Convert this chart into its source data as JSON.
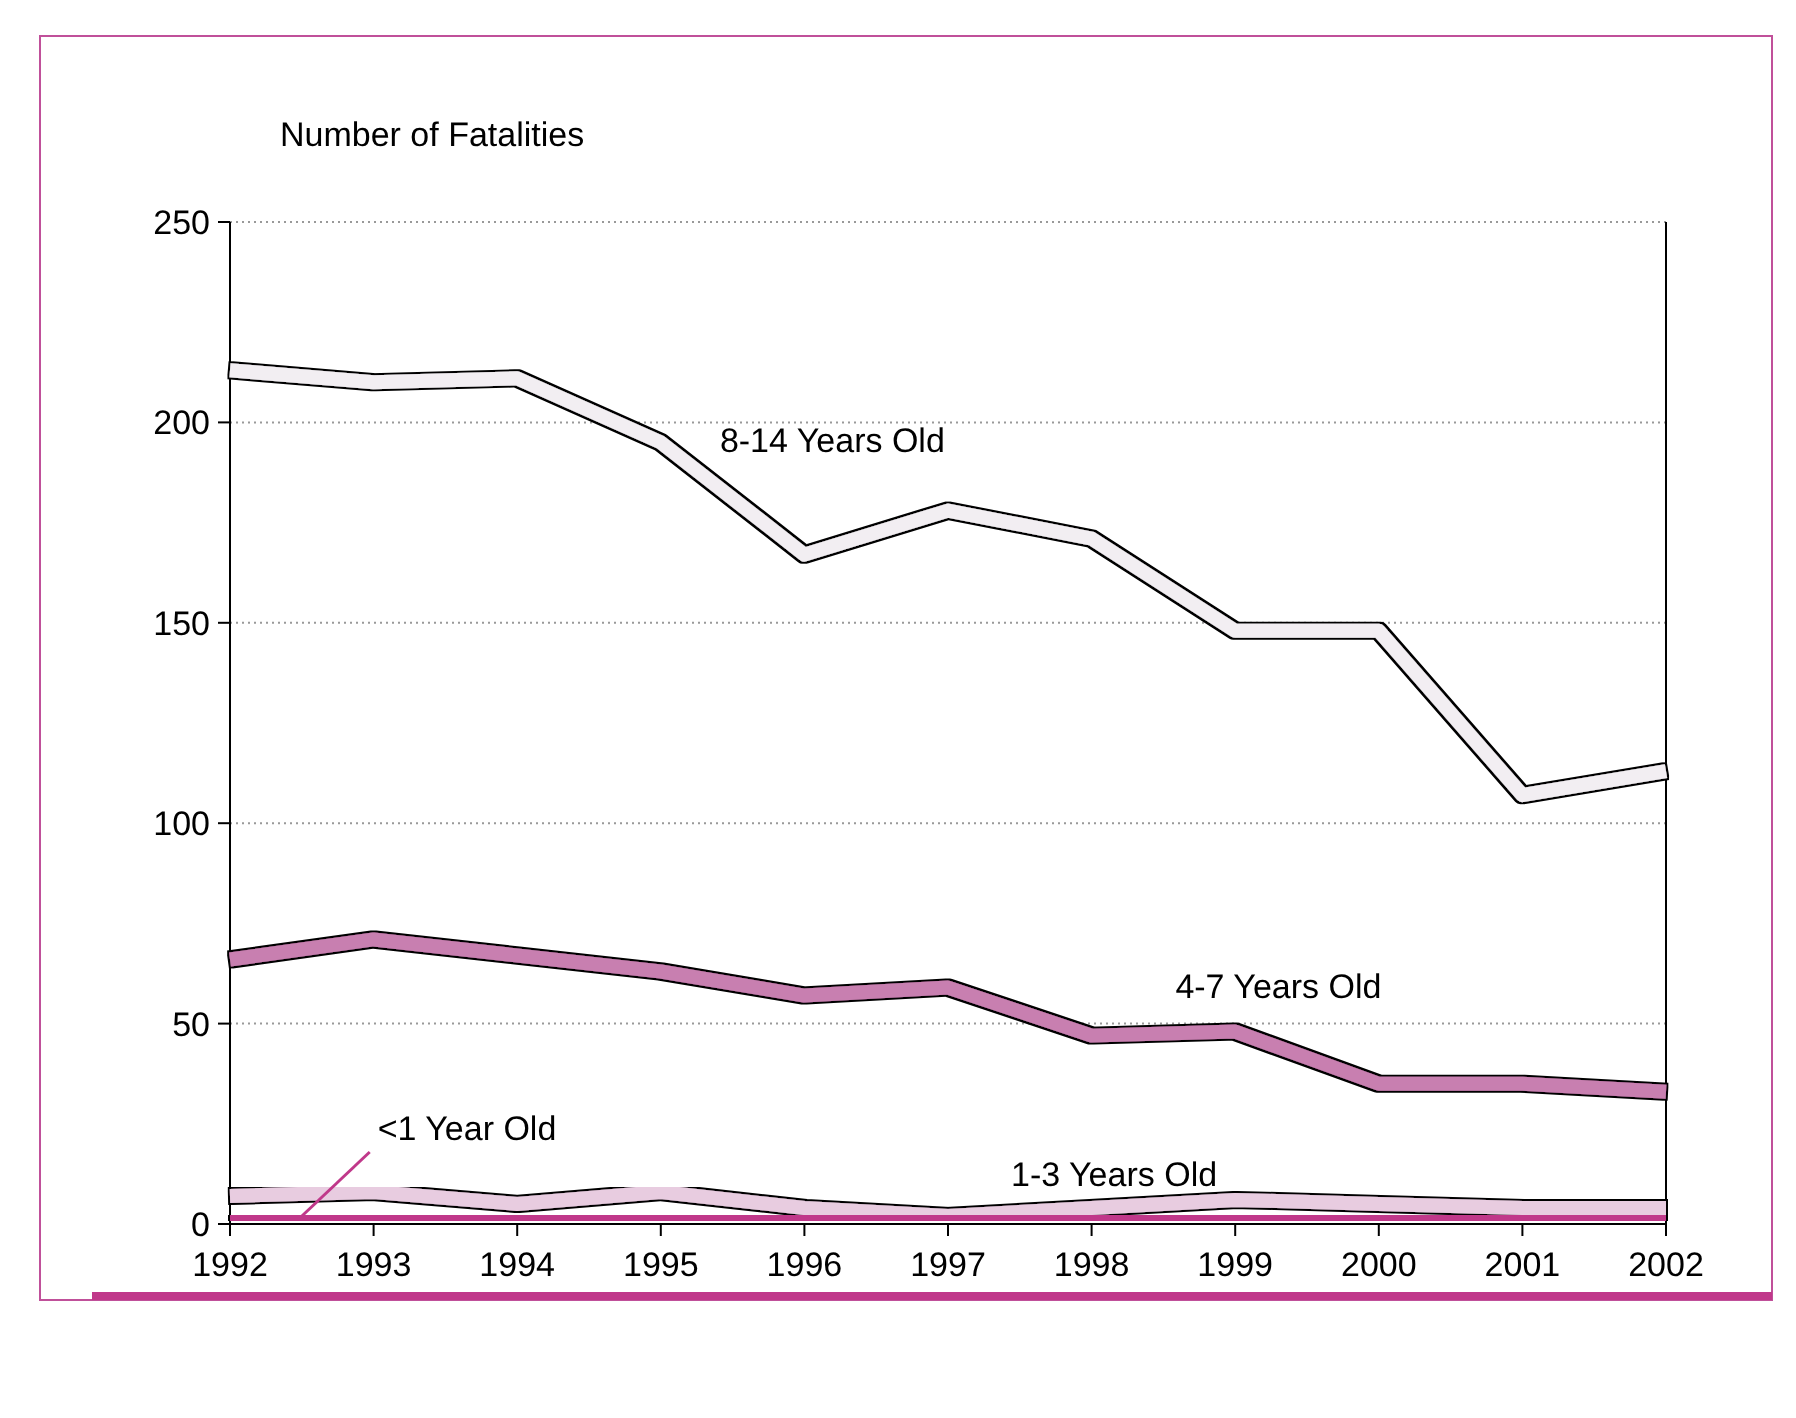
{
  "chart_data": {
    "type": "line",
    "ylabel": "Number of Fatalities",
    "categories": [
      "1992",
      "1993",
      "1994",
      "1995",
      "1996",
      "1997",
      "1998",
      "1999",
      "2000",
      "2001",
      "2002"
    ],
    "series": [
      {
        "name": "8-14 Years Old",
        "color": "#f2eef2",
        "values": [
          213,
          210,
          211,
          195,
          167,
          178,
          171,
          148,
          148,
          107,
          113
        ]
      },
      {
        "name": "4-7 Years Old",
        "color": "#c87fb0",
        "values": [
          66,
          71,
          67,
          63,
          57,
          59,
          47,
          48,
          35,
          35,
          33
        ]
      },
      {
        "name": "1-3 Years Old",
        "color": "#e8cce0",
        "values": [
          7,
          8,
          5,
          8,
          4,
          2,
          4,
          6,
          5,
          4,
          4
        ]
      },
      {
        "name": "<1 Year Old",
        "color": "#c0388a",
        "values": [
          1,
          1,
          2,
          1,
          1,
          1,
          1,
          1,
          1,
          1,
          1
        ]
      }
    ],
    "ylim": [
      0,
      250
    ],
    "yticks": [
      0,
      50,
      100,
      150,
      200,
      250
    ],
    "grid": "y",
    "legend": false,
    "marker": "none",
    "line_style": "solid"
  }
}
